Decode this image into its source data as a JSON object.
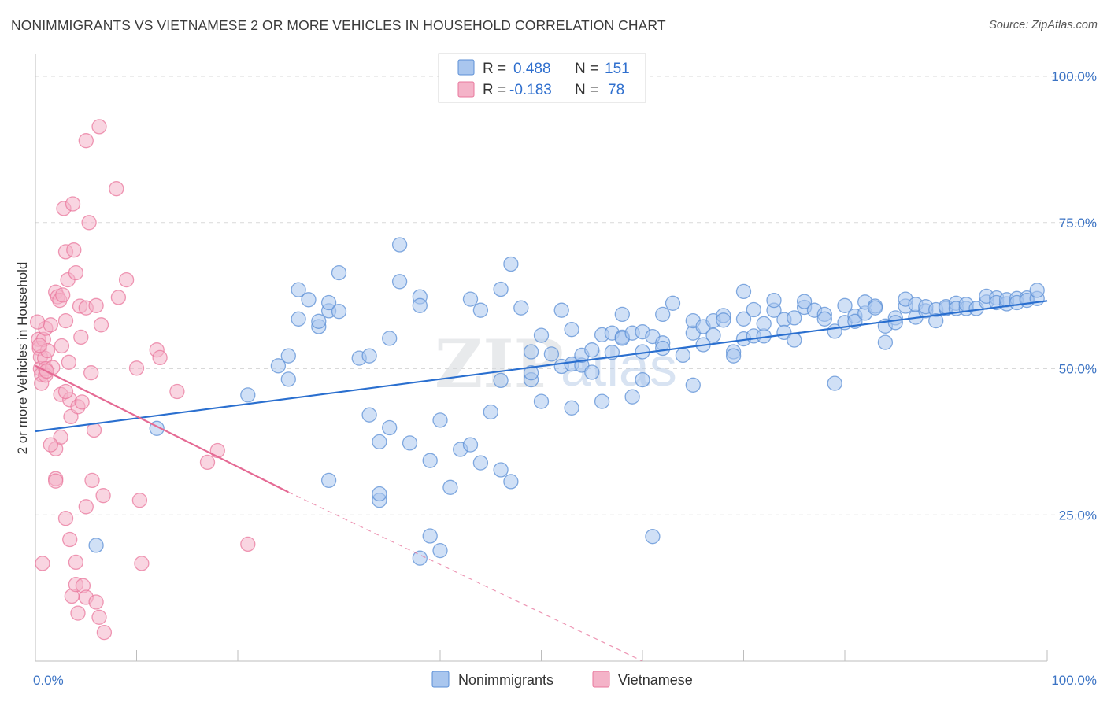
{
  "title": "NONIMMIGRANTS VS VIETNAMESE 2 OR MORE VEHICLES IN HOUSEHOLD CORRELATION CHART",
  "source": "Source: ZipAtlas.com",
  "watermark": {
    "zip": "ZIP",
    "atlas": "atlas"
  },
  "colors": {
    "blue": "#5b8fd6",
    "blue_fill": "#a9c6ee",
    "blue_line": "#2a6fcf",
    "pink": "#e9779c",
    "pink_fill": "#f4b3c8",
    "pink_line": "#e56a94",
    "tick_text": "#3b73c4",
    "grid": "#d9d9d9"
  },
  "legend": {
    "rows": [
      {
        "r_label": "R =",
        "r_value": "0.488",
        "n_label": "N =",
        "n_value": "151",
        "series": "blue"
      },
      {
        "r_label": "R =",
        "r_value": "-0.183",
        "n_label": "N =",
        "n_value": "78",
        "series": "pink"
      }
    ]
  },
  "bottom_legend": {
    "items": [
      "Nonimmigrants",
      "Vietnamese"
    ]
  },
  "chart_data": {
    "type": "scatter",
    "title": "NONIMMIGRANTS VS VIETNAMESE 2 OR MORE VEHICLES IN HOUSEHOLD CORRELATION CHART",
    "xlabel": "",
    "ylabel": "2 or more Vehicles in Household",
    "xlim": [
      0,
      100
    ],
    "ylim": [
      0,
      100
    ],
    "x_tick_labels": [
      "0.0%",
      "100.0%"
    ],
    "y_ticks": [
      25,
      50,
      75,
      100
    ],
    "y_tick_labels": [
      "25.0%",
      "50.0%",
      "75.0%",
      "100.0%"
    ],
    "grid": "horizontal dashed",
    "legend_placement": "top-center",
    "series": [
      {
        "name": "Nonimmigrants",
        "color": "blue",
        "trend": {
          "x": [
            0,
            100
          ],
          "y": [
            39.3,
            61.6
          ],
          "dashed_from": null
        },
        "points": [
          [
            6,
            19.8
          ],
          [
            12,
            39.8
          ],
          [
            21,
            45.5
          ],
          [
            24,
            50.5
          ],
          [
            25,
            52.2
          ],
          [
            25,
            48.2
          ],
          [
            26,
            58.5
          ],
          [
            27,
            61.8
          ],
          [
            26,
            63.5
          ],
          [
            28,
            57.2
          ],
          [
            29,
            59.9
          ],
          [
            29,
            61.3
          ],
          [
            28,
            58.1
          ],
          [
            29,
            30.9
          ],
          [
            30,
            66.4
          ],
          [
            30,
            59.8
          ],
          [
            32,
            51.8
          ],
          [
            33,
            52.2
          ],
          [
            33,
            42.1
          ],
          [
            34,
            37.5
          ],
          [
            34,
            27.5
          ],
          [
            34,
            28.6
          ],
          [
            35,
            55.2
          ],
          [
            35,
            39.9
          ],
          [
            36,
            71.2
          ],
          [
            36,
            64.9
          ],
          [
            37,
            37.3
          ],
          [
            38,
            62.3
          ],
          [
            38,
            60.8
          ],
          [
            38,
            17.6
          ],
          [
            39,
            21.4
          ],
          [
            39,
            34.3
          ],
          [
            40,
            18.9
          ],
          [
            40,
            41.2
          ],
          [
            41,
            29.7
          ],
          [
            42,
            36.2
          ],
          [
            43,
            37.0
          ],
          [
            43,
            61.9
          ],
          [
            44,
            60.0
          ],
          [
            44,
            33.9
          ],
          [
            45,
            42.6
          ],
          [
            46,
            32.7
          ],
          [
            46,
            48.0
          ],
          [
            46,
            63.6
          ],
          [
            47,
            67.9
          ],
          [
            47,
            30.7
          ],
          [
            48,
            60.4
          ],
          [
            49,
            48.1
          ],
          [
            49,
            49.3
          ],
          [
            49,
            52.9
          ],
          [
            50,
            44.4
          ],
          [
            50,
            55.7
          ],
          [
            51,
            52.5
          ],
          [
            52,
            60.0
          ],
          [
            52,
            50.4
          ],
          [
            53,
            56.7
          ],
          [
            53,
            43.3
          ],
          [
            53,
            50.8
          ],
          [
            54,
            50.6
          ],
          [
            54,
            52.3
          ],
          [
            55,
            53.2
          ],
          [
            55,
            49.4
          ],
          [
            56,
            55.8
          ],
          [
            56,
            44.4
          ],
          [
            57,
            56.1
          ],
          [
            58,
            55.4
          ],
          [
            58,
            55.2
          ],
          [
            58,
            59.3
          ],
          [
            59,
            56.1
          ],
          [
            59,
            45.2
          ],
          [
            60,
            52.9
          ],
          [
            60,
            48.1
          ],
          [
            60,
            56.3
          ],
          [
            61,
            55.5
          ],
          [
            61,
            21.3
          ],
          [
            62,
            54.4
          ],
          [
            62,
            53.5
          ],
          [
            63,
            61.2
          ],
          [
            64,
            52.3
          ],
          [
            65,
            47.2
          ],
          [
            65,
            56.1
          ],
          [
            65,
            58.2
          ],
          [
            66,
            57.2
          ],
          [
            66,
            54.1
          ],
          [
            67,
            55.7
          ],
          [
            67,
            58.2
          ],
          [
            68,
            59.1
          ],
          [
            68,
            58.3
          ],
          [
            69,
            52.9
          ],
          [
            69,
            52.2
          ],
          [
            70,
            55.1
          ],
          [
            70,
            63.2
          ],
          [
            70,
            58.5
          ],
          [
            71,
            55.6
          ],
          [
            72,
            55.6
          ],
          [
            72,
            57.7
          ],
          [
            73,
            60.0
          ],
          [
            73,
            61.7
          ],
          [
            74,
            58.4
          ],
          [
            74,
            56.2
          ],
          [
            75,
            54.9
          ],
          [
            75,
            58.7
          ],
          [
            76,
            60.5
          ],
          [
            76,
            61.5
          ],
          [
            77,
            60.0
          ],
          [
            78,
            59.3
          ],
          [
            78,
            58.5
          ],
          [
            79,
            47.5
          ],
          [
            79,
            56.4
          ],
          [
            80,
            57.9
          ],
          [
            80,
            60.8
          ],
          [
            81,
            59.0
          ],
          [
            81,
            58.1
          ],
          [
            82,
            59.5
          ],
          [
            82,
            61.4
          ],
          [
            83,
            60.7
          ],
          [
            83,
            60.4
          ],
          [
            84,
            54.5
          ],
          [
            84,
            57.3
          ],
          [
            85,
            58.7
          ],
          [
            85,
            57.9
          ],
          [
            86,
            60.7
          ],
          [
            86,
            61.9
          ],
          [
            87,
            58.8
          ],
          [
            87,
            61.0
          ],
          [
            88,
            59.9
          ],
          [
            88,
            60.6
          ],
          [
            89,
            60.1
          ],
          [
            89,
            58.2
          ],
          [
            90,
            60.3
          ],
          [
            90,
            60.6
          ],
          [
            91,
            61.2
          ],
          [
            91,
            60.3
          ],
          [
            92,
            60.3
          ],
          [
            92,
            61.0
          ],
          [
            93,
            60.3
          ],
          [
            94,
            61.4
          ],
          [
            94,
            62.4
          ],
          [
            95,
            62.1
          ],
          [
            95,
            61.3
          ],
          [
            96,
            61.1
          ],
          [
            96,
            61.8
          ],
          [
            97,
            62.0
          ],
          [
            97,
            61.3
          ],
          [
            98,
            62.1
          ],
          [
            98,
            61.7
          ],
          [
            99,
            62.0
          ],
          [
            99,
            63.4
          ],
          [
            62,
            59.3
          ],
          [
            57,
            52.8
          ],
          [
            71,
            60.1
          ]
        ]
      },
      {
        "name": "Vietnamese",
        "color": "pink",
        "trend": {
          "x": [
            0,
            25,
            60
          ],
          "y": [
            50.5,
            28.9,
            0
          ],
          "dashed_from": 25
        },
        "points": [
          [
            0.3,
            55.0
          ],
          [
            0.4,
            53.5
          ],
          [
            0.5,
            52.0
          ],
          [
            0.5,
            50.0
          ],
          [
            0.6,
            49.0
          ],
          [
            0.6,
            47.5
          ],
          [
            0.8,
            55.0
          ],
          [
            0.9,
            51.8
          ],
          [
            1,
            56.9
          ],
          [
            1,
            50.0
          ],
          [
            1,
            48.9
          ],
          [
            1.2,
            53.1
          ],
          [
            1.5,
            57.5
          ],
          [
            1.7,
            50.2
          ],
          [
            2,
            36.3
          ],
          [
            2,
            31.2
          ],
          [
            2,
            30.8
          ],
          [
            2,
            63.1
          ],
          [
            2.2,
            62.3
          ],
          [
            2.4,
            61.7
          ],
          [
            2.5,
            45.6
          ],
          [
            2.5,
            38.3
          ],
          [
            2.6,
            53.9
          ],
          [
            2.7,
            62.6
          ],
          [
            2.8,
            77.4
          ],
          [
            3,
            24.4
          ],
          [
            3,
            70.0
          ],
          [
            3,
            58.2
          ],
          [
            3.2,
            65.2
          ],
          [
            3.3,
            51.1
          ],
          [
            3.4,
            20.8
          ],
          [
            3.4,
            44.7
          ],
          [
            3.5,
            41.8
          ],
          [
            3.6,
            11.1
          ],
          [
            3.7,
            78.2
          ],
          [
            3.8,
            70.3
          ],
          [
            4,
            66.4
          ],
          [
            4,
            13.1
          ],
          [
            4,
            16.9
          ],
          [
            4.2,
            43.5
          ],
          [
            4.2,
            8.2
          ],
          [
            4.4,
            60.7
          ],
          [
            4.5,
            55.4
          ],
          [
            4.7,
            12.9
          ],
          [
            5,
            26.4
          ],
          [
            5,
            60.4
          ],
          [
            5,
            89.0
          ],
          [
            5,
            10.9
          ],
          [
            5.3,
            75.0
          ],
          [
            5.5,
            49.3
          ],
          [
            5.6,
            30.9
          ],
          [
            5.8,
            39.5
          ],
          [
            6,
            60.8
          ],
          [
            6,
            10.1
          ],
          [
            6.3,
            91.4
          ],
          [
            6.3,
            7.5
          ],
          [
            6.5,
            57.5
          ],
          [
            6.7,
            28.3
          ],
          [
            6.8,
            4.9
          ],
          [
            8,
            80.8
          ],
          [
            8.2,
            62.2
          ],
          [
            9,
            65.2
          ],
          [
            10,
            50.1
          ],
          [
            10.3,
            27.5
          ],
          [
            10.5,
            16.7
          ],
          [
            12,
            53.2
          ],
          [
            12.3,
            51.9
          ],
          [
            14,
            46.1
          ],
          [
            17,
            34.0
          ],
          [
            18,
            36.0
          ],
          [
            21,
            20.0
          ],
          [
            0.7,
            16.7
          ],
          [
            1.1,
            49.6
          ],
          [
            0.2,
            58.0
          ],
          [
            4.6,
            44.3
          ],
          [
            0.4,
            54.0
          ],
          [
            1.5,
            37.0
          ],
          [
            3.0,
            46.1
          ]
        ]
      }
    ]
  }
}
